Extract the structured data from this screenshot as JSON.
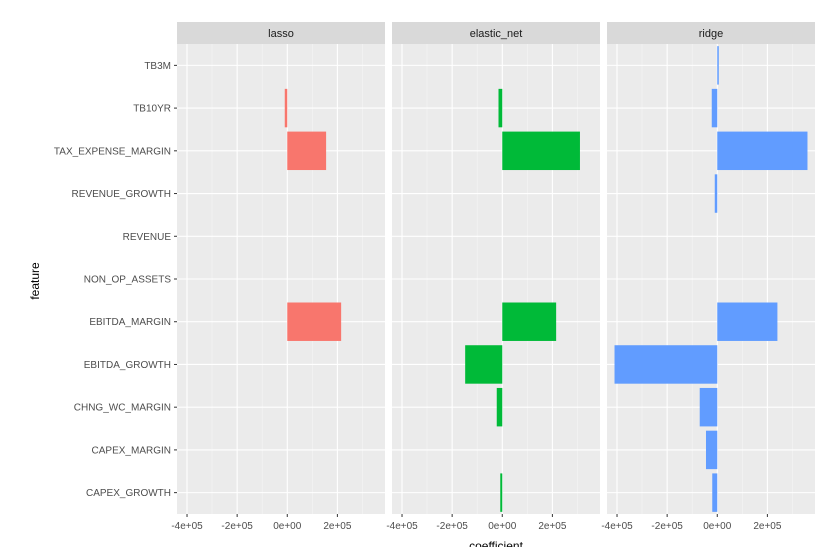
{
  "chart_data": {
    "type": "bar",
    "orientation": "horizontal",
    "facets": [
      "lasso",
      "elastic_net",
      "ridge"
    ],
    "categories": [
      "CAPEX_GROWTH",
      "CAPEX_MARGIN",
      "CHNG_WC_MARGIN",
      "EBITDA_GROWTH",
      "EBITDA_MARGIN",
      "NON_OP_ASSETS",
      "REVENUE",
      "REVENUE_GROWTH",
      "TAX_EXPENSE_MARGIN",
      "TB10YR",
      "TB3M"
    ],
    "series": [
      {
        "name": "lasso",
        "color": "#F8766D",
        "values": [
          0,
          0,
          0,
          0,
          215000,
          0,
          0,
          0,
          155000,
          -10000,
          0
        ]
      },
      {
        "name": "elastic_net",
        "color": "#00BA38",
        "values": [
          -8000,
          0,
          -22000,
          -148000,
          215000,
          0,
          0,
          0,
          310000,
          -15000,
          0
        ]
      },
      {
        "name": "ridge",
        "color": "#619CFF",
        "values": [
          -20000,
          -45000,
          -70000,
          -410000,
          240000,
          0,
          0,
          -10000,
          360000,
          -22000,
          6000
        ]
      }
    ],
    "x_ticks": [
      "-4e+05",
      "-2e+05",
      "0e+00",
      "2e+05"
    ],
    "x_tick_values": [
      -400000,
      -200000,
      0,
      200000
    ],
    "xlim": [
      -440000,
      390000
    ],
    "xlabel": "coefficient",
    "ylabel": "feature",
    "grid": true,
    "legend": "none"
  }
}
